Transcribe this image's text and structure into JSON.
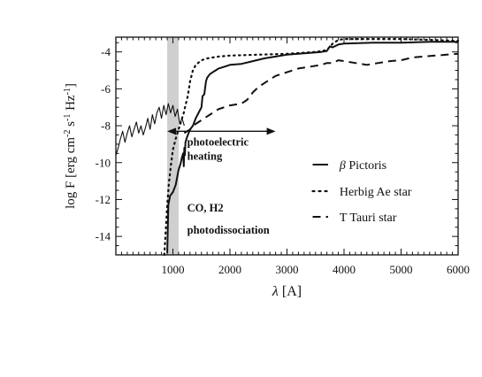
{
  "chart_data": {
    "type": "line",
    "xlabel": "λ [A]",
    "ylabel": "log F [erg cm-2 s-1 Hz-1]",
    "ylabel_parts": {
      "main": "log F [erg cm",
      "e1": "-2",
      "s": " s",
      "e2": "-1",
      "hz": " Hz",
      "e3": "-1",
      "close": "]"
    },
    "xlim": [
      0,
      6000
    ],
    "ylim": [
      -15,
      -3.2
    ],
    "xticks": [
      1000,
      2000,
      3000,
      4000,
      5000,
      6000
    ],
    "xtick_labels": [
      "1000",
      "2000",
      "3000",
      "4000",
      "5000",
      "6000"
    ],
    "yticks": [
      -4,
      -6,
      -8,
      -10,
      -12,
      -14
    ],
    "ytick_labels": [
      "-4",
      "-6",
      "-8",
      "-10",
      "-12",
      "-14"
    ],
    "grid": false,
    "legend_position": "lower-right",
    "shaded_band": {
      "x_range": [
        900,
        1100
      ],
      "color": "#cfcfcf"
    },
    "annotations": {
      "photoelectric_line1": "photoelectric",
      "photoelectric_line2": "heating",
      "photoelectric_arrow_x": [
        900,
        2800
      ],
      "photoelectric_arrow_y": -8.3,
      "co_line1": "CO, H2",
      "co_line2": "photodissociation"
    },
    "series": [
      {
        "name": "β Pictoris",
        "name_symbol": "β",
        "name_text": " Pictoris",
        "style": "solid",
        "x": [
          900,
          920,
          950,
          1000,
          1050,
          1100,
          1130,
          1160,
          1180,
          1190,
          1200,
          1210,
          1220,
          1250,
          1300,
          1350,
          1400,
          1450,
          1500,
          1520,
          1550,
          1580,
          1600,
          1650,
          1700,
          1750,
          1800,
          1900,
          2000,
          2200,
          2400,
          2600,
          2800,
          3000,
          3200,
          3400,
          3600,
          3700,
          3750,
          3800,
          3900,
          4000,
          4500,
          5000,
          5500,
          6000
        ],
        "y": [
          -14.9,
          -12.3,
          -11.8,
          -11.6,
          -11.2,
          -10.4,
          -10.1,
          -9.7,
          -9.5,
          -10.2,
          -9.2,
          -9.6,
          -8.9,
          -8.6,
          -8.2,
          -8.0,
          -7.6,
          -7.3,
          -7.0,
          -6.4,
          -6.3,
          -5.6,
          -5.4,
          -5.2,
          -5.1,
          -5.0,
          -4.9,
          -4.8,
          -4.7,
          -4.65,
          -4.5,
          -4.35,
          -4.25,
          -4.15,
          -4.1,
          -4.05,
          -4.0,
          -3.95,
          -3.7,
          -3.75,
          -3.6,
          -3.55,
          -3.5,
          -3.5,
          -3.45,
          -3.45
        ]
      },
      {
        "name": "Herbig Ae star",
        "style": "dotted",
        "x": [
          850,
          900,
          930,
          970,
          1000,
          1050,
          1100,
          1130,
          1160,
          1190,
          1220,
          1260,
          1300,
          1350,
          1400,
          1500,
          1600,
          1700,
          1800,
          2000,
          2500,
          3000,
          3500,
          3700,
          3800,
          3900,
          4000,
          4500,
          5000,
          5500,
          6000
        ],
        "y": [
          -15.0,
          -12.3,
          -11.1,
          -10.0,
          -9.3,
          -8.7,
          -8.2,
          -7.9,
          -7.6,
          -7.3,
          -6.9,
          -6.4,
          -5.6,
          -5.0,
          -4.7,
          -4.45,
          -4.35,
          -4.3,
          -4.25,
          -4.2,
          -4.15,
          -4.1,
          -4.0,
          -3.9,
          -3.55,
          -3.35,
          -3.3,
          -3.3,
          -3.3,
          -3.35,
          -3.4
        ]
      },
      {
        "name": "T Tauri star",
        "style": "dashed",
        "x": [
          1200,
          1300,
          1400,
          1500,
          1600,
          1700,
          1800,
          2000,
          2200,
          2300,
          2400,
          2500,
          2600,
          2700,
          2800,
          2900,
          3000,
          3200,
          3400,
          3600,
          3700,
          3800,
          3900,
          4000,
          4200,
          4400,
          4600,
          4800,
          5000,
          5200,
          5400,
          5600,
          5800,
          6000
        ],
        "y": [
          -8.4,
          -8.2,
          -7.9,
          -7.7,
          -7.5,
          -7.3,
          -7.1,
          -6.9,
          -6.8,
          -6.6,
          -6.2,
          -5.9,
          -5.7,
          -5.5,
          -5.3,
          -5.2,
          -5.1,
          -4.9,
          -4.8,
          -4.7,
          -4.6,
          -4.6,
          -4.45,
          -4.5,
          -4.6,
          -4.7,
          -4.6,
          -4.5,
          -4.45,
          -4.3,
          -4.25,
          -4.2,
          -4.15,
          -4.1
        ]
      },
      {
        "name": "",
        "style": "noisy-solid",
        "x": [
          0,
          40,
          80,
          120,
          160,
          200,
          240,
          280,
          320,
          360,
          400,
          440,
          480,
          520,
          560,
          600,
          640,
          680,
          720,
          760,
          800,
          840,
          880,
          920,
          960,
          1000,
          1040,
          1080,
          1120,
          1160,
          1200
        ],
        "y": [
          -9.6,
          -9.2,
          -8.7,
          -8.3,
          -8.9,
          -8.4,
          -8.0,
          -8.6,
          -8.2,
          -7.8,
          -8.4,
          -8.0,
          -8.5,
          -8.1,
          -7.6,
          -8.2,
          -7.4,
          -7.9,
          -7.3,
          -7.0,
          -7.6,
          -6.9,
          -7.4,
          -6.8,
          -7.3,
          -6.9,
          -7.5,
          -7.1,
          -7.9,
          -7.6,
          -8.0
        ]
      }
    ]
  }
}
